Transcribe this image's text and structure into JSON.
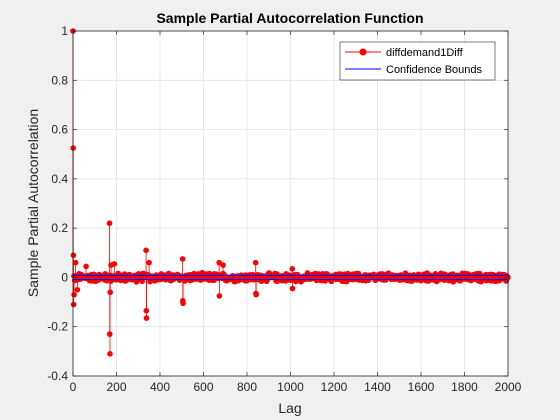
{
  "chart_data": {
    "type": "stem",
    "title": "Sample Partial Autocorrelation Function",
    "xlabel": "Lag",
    "ylabel": "Sample Partial Autocorrelation",
    "xlim": [
      0,
      2000
    ],
    "ylim": [
      -0.4,
      1
    ],
    "xticks": [
      0,
      200,
      400,
      600,
      800,
      1000,
      1200,
      1400,
      1600,
      1800,
      2000
    ],
    "yticks": [
      -0.4,
      -0.2,
      0,
      0.2,
      0.4,
      0.6,
      0.8,
      1
    ],
    "grid": true,
    "legend_position": "top-right",
    "series": [
      {
        "name": "diffdemand1Diff",
        "color": "#ff0000",
        "marker": "filled-circle",
        "notable_points": [
          {
            "lag": 0,
            "value": 1
          },
          {
            "lag": 1,
            "value": 0.525
          },
          {
            "lag": 2,
            "value": 0.09
          },
          {
            "lag": 3,
            "value": -0.11
          },
          {
            "lag": 5,
            "value": -0.07
          },
          {
            "lag": 12,
            "value": 0.06
          },
          {
            "lag": 20,
            "value": -0.05
          },
          {
            "lag": 60,
            "value": 0.045
          },
          {
            "lag": 168,
            "value": 0.22
          },
          {
            "lag": 169,
            "value": -0.23
          },
          {
            "lag": 170,
            "value": -0.31
          },
          {
            "lag": 171,
            "value": -0.06
          },
          {
            "lag": 175,
            "value": 0.05
          },
          {
            "lag": 190,
            "value": 0.055
          },
          {
            "lag": 336,
            "value": 0.11
          },
          {
            "lag": 337,
            "value": -0.135
          },
          {
            "lag": 338,
            "value": -0.165
          },
          {
            "lag": 350,
            "value": 0.06
          },
          {
            "lag": 504,
            "value": 0.075
          },
          {
            "lag": 505,
            "value": -0.095
          },
          {
            "lag": 506,
            "value": -0.105
          },
          {
            "lag": 672,
            "value": 0.06
          },
          {
            "lag": 673,
            "value": -0.075
          },
          {
            "lag": 690,
            "value": 0.05
          },
          {
            "lag": 840,
            "value": 0.06
          },
          {
            "lag": 841,
            "value": -0.065
          },
          {
            "lag": 842,
            "value": -0.07
          },
          {
            "lag": 1008,
            "value": 0.035
          },
          {
            "lag": 1009,
            "value": -0.045
          }
        ],
        "background_noise_amplitude": 0.02
      },
      {
        "name": "Confidence Bounds",
        "color": "#0000ff",
        "upper": 0.0085,
        "lower": -0.0085
      }
    ]
  }
}
